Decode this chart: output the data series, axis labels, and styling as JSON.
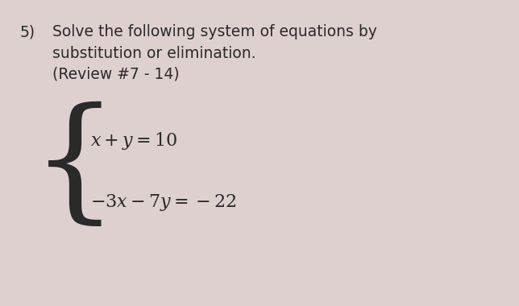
{
  "background_color": "#dfd0d0",
  "text_color": "#2a2a2a",
  "number_label": "5)",
  "line1": "Solve the following system of equations by",
  "line2": "substitution or elimination.",
  "line3": "(Review #7 - 14)",
  "eq1": "$x + y = 10$",
  "eq2": "$-3x - 7y = -22$",
  "fig_width": 6.44,
  "fig_height": 3.8,
  "dpi": 100
}
